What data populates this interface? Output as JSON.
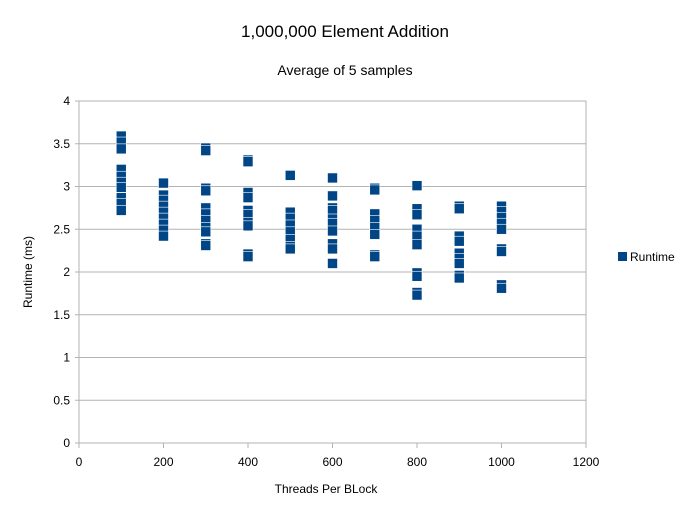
{
  "chart_data": {
    "type": "scatter",
    "title": "1,000,000 Element Addition",
    "subtitle": "Average of 5 samples",
    "xlabel": "Threads Per BLock",
    "ylabel": "Runtime (ms)",
    "xlim": [
      0,
      1200
    ],
    "ylim": [
      0,
      4
    ],
    "xticks": [
      0,
      200,
      400,
      600,
      800,
      1000,
      1200
    ],
    "yticks": [
      0,
      0.5,
      1,
      1.5,
      2,
      2.5,
      3,
      3.5,
      4
    ],
    "grid": "horizontal",
    "legend_position": "right",
    "marker_color": "#004586",
    "series": [
      {
        "name": "Runtime",
        "points": [
          [
            100,
            3.59
          ],
          [
            100,
            3.52
          ],
          [
            100,
            3.44
          ],
          [
            100,
            3.2
          ],
          [
            100,
            3.12
          ],
          [
            100,
            3.05
          ],
          [
            100,
            2.99
          ],
          [
            100,
            2.87
          ],
          [
            100,
            2.8
          ],
          [
            100,
            2.72
          ],
          [
            200,
            3.04
          ],
          [
            200,
            2.9
          ],
          [
            200,
            2.84
          ],
          [
            200,
            2.77
          ],
          [
            200,
            2.7
          ],
          [
            200,
            2.63
          ],
          [
            200,
            2.56
          ],
          [
            200,
            2.49
          ],
          [
            200,
            2.42
          ],
          [
            300,
            3.45
          ],
          [
            300,
            3.42
          ],
          [
            300,
            2.98
          ],
          [
            300,
            2.95
          ],
          [
            300,
            2.75
          ],
          [
            300,
            2.68
          ],
          [
            300,
            2.6
          ],
          [
            300,
            2.52
          ],
          [
            300,
            2.47
          ],
          [
            300,
            2.33
          ],
          [
            300,
            2.31
          ],
          [
            400,
            3.31
          ],
          [
            400,
            3.29
          ],
          [
            400,
            2.93
          ],
          [
            400,
            2.87
          ],
          [
            400,
            2.72
          ],
          [
            400,
            2.67
          ],
          [
            400,
            2.58
          ],
          [
            400,
            2.54
          ],
          [
            400,
            2.21
          ],
          [
            400,
            2.18
          ],
          [
            500,
            3.13
          ],
          [
            500,
            2.7
          ],
          [
            500,
            2.63
          ],
          [
            500,
            2.55
          ],
          [
            500,
            2.47
          ],
          [
            500,
            2.38
          ],
          [
            500,
            2.3
          ],
          [
            500,
            2.27
          ],
          [
            600,
            3.1
          ],
          [
            600,
            2.89
          ],
          [
            600,
            2.75
          ],
          [
            600,
            2.72
          ],
          [
            600,
            2.62
          ],
          [
            600,
            2.57
          ],
          [
            600,
            2.48
          ],
          [
            600,
            2.33
          ],
          [
            600,
            2.27
          ],
          [
            600,
            2.1
          ],
          [
            700,
            2.98
          ],
          [
            700,
            2.96
          ],
          [
            700,
            2.68
          ],
          [
            700,
            2.6
          ],
          [
            700,
            2.52
          ],
          [
            700,
            2.44
          ],
          [
            700,
            2.2
          ],
          [
            700,
            2.18
          ],
          [
            800,
            3.01
          ],
          [
            800,
            2.74
          ],
          [
            800,
            2.67
          ],
          [
            800,
            2.5
          ],
          [
            800,
            2.42
          ],
          [
            800,
            2.32
          ],
          [
            800,
            1.99
          ],
          [
            800,
            1.95
          ],
          [
            800,
            1.76
          ],
          [
            800,
            1.73
          ],
          [
            900,
            2.77
          ],
          [
            900,
            2.74
          ],
          [
            900,
            2.42
          ],
          [
            900,
            2.36
          ],
          [
            900,
            2.22
          ],
          [
            900,
            2.16
          ],
          [
            900,
            2.1
          ],
          [
            900,
            1.96
          ],
          [
            900,
            1.93
          ],
          [
            1000,
            2.77
          ],
          [
            1000,
            2.71
          ],
          [
            1000,
            2.64
          ],
          [
            1000,
            2.57
          ],
          [
            1000,
            2.5
          ],
          [
            1000,
            2.27
          ],
          [
            1000,
            2.24
          ],
          [
            1000,
            1.85
          ],
          [
            1000,
            1.81
          ]
        ]
      }
    ]
  }
}
